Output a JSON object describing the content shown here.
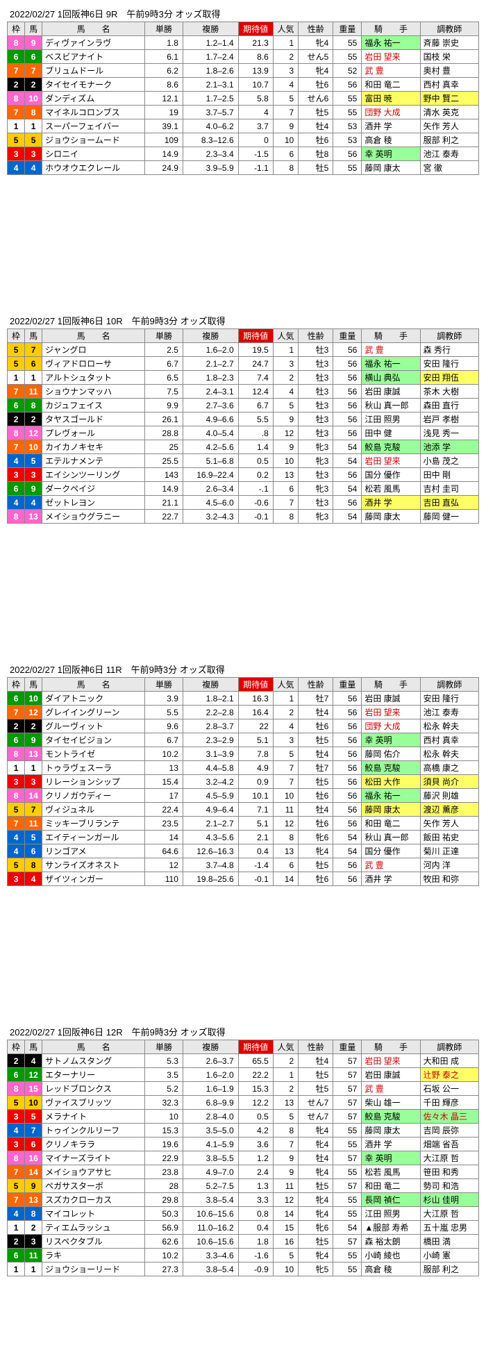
{
  "headers": [
    "枠",
    "馬",
    "馬　　名",
    "単勝",
    "複勝",
    "期待値",
    "人気",
    "性齢",
    "重量",
    "騎　　手",
    "調教師"
  ],
  "waku_colors": {
    "1": "#ffffff",
    "2": "#000000",
    "3": "#ee0000",
    "4": "#0066cc",
    "5": "#ffcc00",
    "6": "#009900",
    "7": "#ff6600",
    "8": "#ff66cc"
  },
  "races": [
    {
      "title": "2022/02/27  1回阪神6日   9R　午前9時3分 オッズ取得",
      "rows": [
        {
          "waku": 8,
          "uma": 9,
          "name": "ディヴァインラヴ",
          "tan": "1.8",
          "fuku": "1.2–1.4",
          "exp": "21.3",
          "pop": 1,
          "sex": "牝4",
          "wt": 55,
          "jockey": "福永 祐一",
          "jc": "green",
          "trainer": "斉藤 崇史"
        },
        {
          "waku": 6,
          "uma": 6,
          "name": "ベスビアナイト",
          "tan": "6.1",
          "fuku": "1.7–2.4",
          "exp": "8.6",
          "pop": 2,
          "sex": "せん5",
          "wt": 55,
          "jockey": "岩田 望来",
          "jc": "red",
          "trainer": "国枝 栄"
        },
        {
          "waku": 7,
          "uma": 7,
          "name": "ブリュムドール",
          "tan": "6.2",
          "fuku": "1.8–2.6",
          "exp": "13.9",
          "pop": 3,
          "sex": "牝4",
          "wt": 52,
          "jockey": "武 豊",
          "jc": "red",
          "trainer": "奥村 豊"
        },
        {
          "waku": 2,
          "uma": 2,
          "name": "タイセイモナーク",
          "tan": "8.6",
          "fuku": "2.1–3.1",
          "exp": "10.7",
          "pop": 4,
          "sex": "牡6",
          "wt": 56,
          "jockey": "和田 竜二",
          "trainer": "西村 真幸"
        },
        {
          "waku": 8,
          "uma": 10,
          "name": "ダンディズム",
          "tan": "12.1",
          "fuku": "1.7–2.5",
          "exp": "5.8",
          "pop": 5,
          "sex": "せん6",
          "wt": 55,
          "jockey": "富田 暁",
          "jhl": "yellow",
          "trainer": "野中 賢二",
          "thl": "yellow"
        },
        {
          "waku": 7,
          "uma": 8,
          "name": "マイネルコロンブス",
          "tan": "19",
          "fuku": "3.7–5.7",
          "exp": "4",
          "pop": 7,
          "sex": "牡5",
          "wt": 55,
          "jockey": "団野 大成",
          "jc": "red",
          "trainer": "清水 英克"
        },
        {
          "waku": 1,
          "uma": 1,
          "name": "スーパーフェイバー",
          "tan": "39.1",
          "fuku": "4.0–6.2",
          "exp": "3.7",
          "pop": 9,
          "sex": "牡4",
          "wt": 53,
          "jockey": "酒井 学",
          "trainer": "矢作 芳人"
        },
        {
          "waku": 5,
          "uma": 5,
          "name": "ジョウショームード",
          "tan": "109",
          "fuku": "8.3–12.6",
          "exp": "0",
          "pop": 10,
          "sex": "牡6",
          "wt": 53,
          "jockey": "高倉 稜",
          "trainer": "服部 利之"
        },
        {
          "waku": 3,
          "uma": 3,
          "name": "シロニイ",
          "tan": "14.9",
          "fuku": "2.3–3.4",
          "exp": "-1.5",
          "pop": 6,
          "sex": "牡8",
          "wt": 56,
          "jockey": "幸 英明",
          "jc": "green",
          "trainer": "池江 泰寿"
        },
        {
          "waku": 4,
          "uma": 4,
          "name": "ホウオウエクレール",
          "tan": "24.9",
          "fuku": "3.9–5.9",
          "exp": "-1.1",
          "pop": 8,
          "sex": "牡5",
          "wt": 55,
          "jockey": "藤岡 康太",
          "trainer": "宮 徹"
        }
      ]
    },
    {
      "title": "2022/02/27  1回阪神6日   10R　午前9時3分 オッズ取得",
      "rows": [
        {
          "waku": 5,
          "uma": 7,
          "name": "ジャングロ",
          "tan": "2.5",
          "fuku": "1.6–2.0",
          "exp": "19.5",
          "pop": 1,
          "sex": "牡3",
          "wt": 56,
          "jockey": "武 豊",
          "jc": "red",
          "trainer": "森 秀行"
        },
        {
          "waku": 5,
          "uma": 6,
          "name": "ヴィアドロローサ",
          "tan": "6.7",
          "fuku": "2.1–2.7",
          "exp": "24.7",
          "pop": 3,
          "sex": "牡3",
          "wt": 56,
          "jockey": "福永 祐一",
          "jc": "green",
          "trainer": "安田 隆行"
        },
        {
          "waku": 1,
          "uma": 1,
          "name": "アルトシュタット",
          "tan": "6.5",
          "fuku": "1.8–2.3",
          "exp": "7.4",
          "pop": 2,
          "sex": "牡3",
          "wt": 56,
          "jockey": "横山 典弘",
          "jc": "green",
          "trainer": "安田 翔伍",
          "thl": "yellow"
        },
        {
          "waku": 7,
          "uma": 11,
          "name": "ショウナンマッハ",
          "tan": "7.5",
          "fuku": "2.4–3.1",
          "exp": "12.4",
          "pop": 4,
          "sex": "牡3",
          "wt": 56,
          "jockey": "岩田 康誠",
          "trainer": "茶木 大樹"
        },
        {
          "waku": 6,
          "uma": 8,
          "name": "カジュフェイス",
          "tan": "9.9",
          "fuku": "2.7–3.6",
          "exp": "6.7",
          "pop": 5,
          "sex": "牡3",
          "wt": 56,
          "jockey": "秋山 真一郎",
          "trainer": "森田 直行"
        },
        {
          "waku": 2,
          "uma": 2,
          "name": "タヤスゴールド",
          "tan": "26.1",
          "fuku": "4.9–6.6",
          "exp": "5.5",
          "pop": 9,
          "sex": "牡3",
          "wt": 56,
          "jockey": "江田 照男",
          "trainer": "岩戸 孝樹"
        },
        {
          "waku": 8,
          "uma": 12,
          "name": "プレヴォール",
          "tan": "28.8",
          "fuku": "4.0–5.4",
          "exp": ".8",
          "pop": 12,
          "sex": "牡3",
          "wt": 56,
          "jockey": "田中 健",
          "trainer": "浅見 秀一"
        },
        {
          "waku": 7,
          "uma": 10,
          "name": "カイカノキセキ",
          "tan": "25",
          "fuku": "4.2–5.6",
          "exp": "1.4",
          "pop": 9,
          "sex": "牝3",
          "wt": 54,
          "jockey": "鮫島 克駿",
          "jhl": "green",
          "trainer": "池添 学",
          "thl": "green"
        },
        {
          "waku": 4,
          "uma": 5,
          "name": "エテルナメンテ",
          "tan": "25.5",
          "fuku": "5.1–6.8",
          "exp": "0.5",
          "pop": 10,
          "sex": "牝3",
          "wt": 54,
          "jockey": "岩田 望来",
          "jc": "red",
          "trainer": "小島 茂之"
        },
        {
          "waku": 3,
          "uma": 3,
          "name": "エイシンツーリング",
          "tan": "143",
          "fuku": "16.9–22.4",
          "exp": "0.2",
          "pop": 13,
          "sex": "牡3",
          "wt": 56,
          "jockey": "国分 優作",
          "trainer": "田中 剛"
        },
        {
          "waku": 6,
          "uma": 9,
          "name": "ダークペイジ",
          "tan": "14.9",
          "fuku": "2.6–3.4",
          "exp": "-.1",
          "pop": 6,
          "sex": "牝3",
          "wt": 54,
          "jockey": "松若 風馬",
          "trainer": "吉村 圭司"
        },
        {
          "waku": 4,
          "uma": 4,
          "name": "ゼットレヨン",
          "tan": "21.1",
          "fuku": "4.5–6.0",
          "exp": "-0.6",
          "pop": 7,
          "sex": "牡3",
          "wt": 56,
          "jockey": "酒井 学",
          "jhl": "yellow",
          "trainer": "吉田 直弘",
          "thl": "yellow"
        },
        {
          "waku": 8,
          "uma": 13,
          "name": "メイショウグラニー",
          "tan": "22.7",
          "fuku": "3.2–4.3",
          "exp": "-0.1",
          "pop": 8,
          "sex": "牝3",
          "wt": 54,
          "jockey": "藤岡 康太",
          "trainer": "藤岡 健一"
        }
      ]
    },
    {
      "title": "2022/02/27  1回阪神6日   11R　午前9時3分 オッズ取得",
      "rows": [
        {
          "waku": 6,
          "uma": 10,
          "name": "ダイアトニック",
          "tan": "3.9",
          "fuku": "1.8–2.1",
          "exp": "16.3",
          "pop": 1,
          "sex": "牡7",
          "wt": 56,
          "jockey": "岩田 康誠",
          "trainer": "安田 隆行"
        },
        {
          "waku": 7,
          "uma": 12,
          "name": "グレイイングリーン",
          "tan": "5.5",
          "fuku": "2.2–2.8",
          "exp": "16.4",
          "pop": 2,
          "sex": "牡4",
          "wt": 56,
          "jockey": "岩田 望来",
          "jc": "red",
          "trainer": "池江 泰寿"
        },
        {
          "waku": 2,
          "uma": 2,
          "name": "グルーヴィット",
          "tan": "9.6",
          "fuku": "2.8–3.7",
          "exp": "22",
          "pop": 4,
          "sex": "牡6",
          "wt": 56,
          "jockey": "団野 大成",
          "jc": "red",
          "trainer": "松永 幹夫"
        },
        {
          "waku": 6,
          "uma": 9,
          "name": "タイセイビジョン",
          "tan": "6.7",
          "fuku": "2.3–2.9",
          "exp": "5.1",
          "pop": 3,
          "sex": "牡5",
          "wt": 56,
          "jockey": "幸 英明",
          "jc": "green",
          "trainer": "西村 真幸"
        },
        {
          "waku": 8,
          "uma": 13,
          "name": "モントライゼ",
          "tan": "10.2",
          "fuku": "3.1–3.9",
          "exp": "7.8",
          "pop": 5,
          "sex": "牡4",
          "wt": 56,
          "jockey": "藤岡 佑介",
          "trainer": "松永 幹夫"
        },
        {
          "waku": 1,
          "uma": 1,
          "name": "トゥラヴェスーラ",
          "tan": "13",
          "fuku": "4.4–5.8",
          "exp": "4.9",
          "pop": 7,
          "sex": "牡7",
          "wt": 56,
          "jockey": "鮫島 克駿",
          "jhl": "green",
          "trainer": "高橋 康之"
        },
        {
          "waku": 3,
          "uma": 3,
          "name": "リレーションシップ",
          "tan": "15.4",
          "fuku": "3.2–4.2",
          "exp": "0.9",
          "pop": 7,
          "sex": "牡5",
          "wt": 56,
          "jockey": "松田 大作",
          "jhl": "yellow",
          "trainer": "須貝 尚介",
          "thl": "yellow"
        },
        {
          "waku": 8,
          "uma": 14,
          "name": "クリノガウディー",
          "tan": "17",
          "fuku": "4.5–5.9",
          "exp": "10.1",
          "pop": 10,
          "sex": "牡6",
          "wt": 56,
          "jockey": "福永 祐一",
          "jc": "green",
          "trainer": "藤沢 則雄"
        },
        {
          "waku": 5,
          "uma": 7,
          "name": "ヴィジュネル",
          "tan": "22.4",
          "fuku": "4.9–6.4",
          "exp": "7.1",
          "pop": 11,
          "sex": "牡4",
          "wt": 56,
          "jockey": "藤岡 康太",
          "jhl": "yellow",
          "trainer": "渡辺 薫彦",
          "thl": "yellow"
        },
        {
          "waku": 7,
          "uma": 11,
          "name": "ミッキーブリランテ",
          "tan": "23.5",
          "fuku": "2.1–2.7",
          "exp": "5.1",
          "pop": 12,
          "sex": "牡6",
          "wt": 56,
          "jockey": "和田 竜二",
          "trainer": "矢作 芳人"
        },
        {
          "waku": 4,
          "uma": 5,
          "name": "エイティーンガール",
          "tan": "14",
          "fuku": "4.3–5.6",
          "exp": "2.1",
          "pop": 8,
          "sex": "牝6",
          "wt": 54,
          "jockey": "秋山 真一郎",
          "trainer": "飯田 祐史"
        },
        {
          "waku": 4,
          "uma": 6,
          "name": "リンゴアメ",
          "tan": "64.6",
          "fuku": "12.6–16.3",
          "exp": "0.4",
          "pop": 13,
          "sex": "牝4",
          "wt": 54,
          "jockey": "国分 優作",
          "trainer": "菊川 正達"
        },
        {
          "waku": 5,
          "uma": 8,
          "name": "サンライズオネスト",
          "tan": "12",
          "fuku": "3.7–4.8",
          "exp": "-1.4",
          "pop": 6,
          "sex": "牡5",
          "wt": 56,
          "jockey": "武 豊",
          "jc": "red",
          "trainer": "河内 洋"
        },
        {
          "waku": 3,
          "uma": 4,
          "name": "ザイツィンガー",
          "tan": "110",
          "fuku": "19.8–25.6",
          "exp": "-0.1",
          "pop": 14,
          "sex": "牡6",
          "wt": 56,
          "jockey": "酒井 学",
          "trainer": "牧田 和弥"
        }
      ]
    },
    {
      "title": "2022/02/27  1回阪神6日   12R　午前9時3分 オッズ取得",
      "rows": [
        {
          "waku": 2,
          "uma": 4,
          "name": "サトノムスタング",
          "tan": "5.3",
          "fuku": "2.6–3.7",
          "exp": "65.5",
          "pop": 2,
          "sex": "牡4",
          "wt": 57,
          "jockey": "岩田 望来",
          "jc": "red",
          "trainer": "大和田 成"
        },
        {
          "waku": 6,
          "uma": 12,
          "name": "エターナリー",
          "tan": "3.5",
          "fuku": "1.6–2.0",
          "exp": "22.2",
          "pop": 1,
          "sex": "牡5",
          "wt": 57,
          "jockey": "岩田 康誠",
          "trainer": "辻野 泰之",
          "thl": "yellow",
          "tc": "red"
        },
        {
          "waku": 8,
          "uma": 15,
          "name": "レッドブロンクス",
          "tan": "5.2",
          "fuku": "1.6–1.9",
          "exp": "15.3",
          "pop": 2,
          "sex": "牡5",
          "wt": 57,
          "jockey": "武 豊",
          "jc": "red",
          "trainer": "石坂 公一"
        },
        {
          "waku": 5,
          "uma": 10,
          "name": "ヴァイスブリッツ",
          "tan": "32.3",
          "fuku": "6.8–9.9",
          "exp": "12.2",
          "pop": 13,
          "sex": "せん7",
          "wt": 57,
          "jockey": "柴山 雄一",
          "trainer": "千田 輝彦"
        },
        {
          "waku": 3,
          "uma": 5,
          "name": "メラナイト",
          "tan": "10",
          "fuku": "2.8–4.0",
          "exp": "0.5",
          "pop": 5,
          "sex": "せん7",
          "wt": 57,
          "jockey": "鮫島 克駿",
          "jhl": "green",
          "trainer": "佐々木 晶三",
          "thl": "green",
          "tc": "red"
        },
        {
          "waku": 4,
          "uma": 7,
          "name": "トゥインクルリーフ",
          "tan": "15.3",
          "fuku": "3.5–5.0",
          "exp": "4.2",
          "pop": 8,
          "sex": "牝4",
          "wt": 55,
          "jockey": "藤岡 康太",
          "trainer": "吉岡 辰弥"
        },
        {
          "waku": 3,
          "uma": 6,
          "name": "クリノキララ",
          "tan": "19.6",
          "fuku": "4.1–5.9",
          "exp": "3.6",
          "pop": 7,
          "sex": "牝4",
          "wt": 55,
          "jockey": "酒井 学",
          "trainer": "畑端 省吾"
        },
        {
          "waku": 8,
          "uma": 16,
          "name": "マイナーズライト",
          "tan": "22.9",
          "fuku": "3.8–5.5",
          "exp": "1.2",
          "pop": 9,
          "sex": "牡4",
          "wt": 57,
          "jockey": "幸 英明",
          "jc": "green",
          "trainer": "大江原 哲"
        },
        {
          "waku": 7,
          "uma": 14,
          "name": "メイショウアサヒ",
          "tan": "23.8",
          "fuku": "4.9–7.0",
          "exp": "2.4",
          "pop": 9,
          "sex": "牝4",
          "wt": 55,
          "jockey": "松若 風馬",
          "trainer": "笹田 和秀"
        },
        {
          "waku": 5,
          "uma": 9,
          "name": "ペガサスターボ",
          "tan": "28",
          "fuku": "5.2–7.5",
          "exp": "1.3",
          "pop": 11,
          "sex": "牡5",
          "wt": 57,
          "jockey": "和田 竜二",
          "trainer": "勢司 和浩"
        },
        {
          "waku": 7,
          "uma": 13,
          "name": "スズカクローカス",
          "tan": "29.8",
          "fuku": "3.8–5.4",
          "exp": "3.3",
          "pop": 12,
          "sex": "牝4",
          "wt": 55,
          "jockey": "長岡 禎仁",
          "jhl": "green",
          "trainer": "杉山 佳明",
          "thl": "green"
        },
        {
          "waku": 4,
          "uma": 8,
          "name": "マイコレット",
          "tan": "50.3",
          "fuku": "10.6–15.6",
          "exp": "0.8",
          "pop": 14,
          "sex": "牝4",
          "wt": 55,
          "jockey": "江田 照男",
          "trainer": "大江原 哲"
        },
        {
          "waku": 1,
          "uma": 2,
          "name": "ティエムラッシュ",
          "tan": "56.9",
          "fuku": "11.0–16.2",
          "exp": "0.4",
          "pop": 15,
          "sex": "牝6",
          "wt": 54,
          "jockey": "▲服部 寿希",
          "trainer": "五十嵐 忠男"
        },
        {
          "waku": 2,
          "uma": 3,
          "name": "リスペクタブル",
          "tan": "62.6",
          "fuku": "10.6–15.6",
          "exp": "1.8",
          "pop": 16,
          "sex": "牡5",
          "wt": 57,
          "jockey": "森 裕太朗",
          "trainer": "橋田 満"
        },
        {
          "waku": 6,
          "uma": 11,
          "name": "ラキ",
          "tan": "10.2",
          "fuku": "3.3–4.6",
          "exp": "-1.6",
          "pop": 5,
          "sex": "牝4",
          "wt": 55,
          "jockey": "小崎 綾也",
          "trainer": "小崎 憲"
        },
        {
          "waku": 1,
          "uma": 1,
          "name": "ジョウショーリード",
          "tan": "27.3",
          "fuku": "3.8–5.4",
          "exp": "-0.9",
          "pop": 10,
          "sex": "牝5",
          "wt": 55,
          "jockey": "高倉 稜",
          "trainer": "服部 利之"
        }
      ]
    }
  ]
}
